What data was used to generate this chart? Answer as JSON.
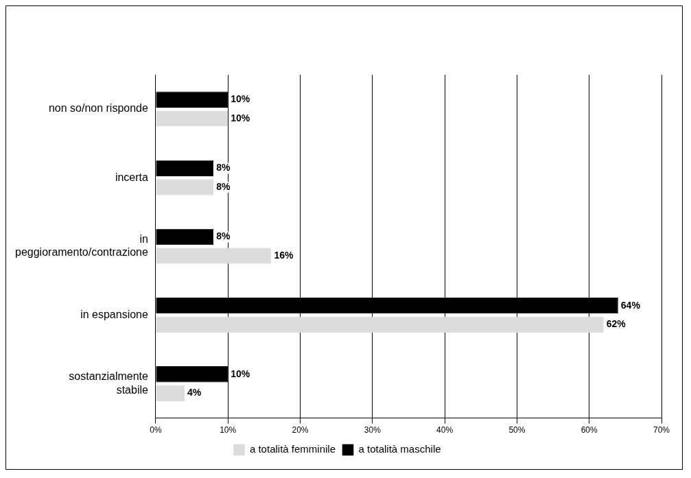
{
  "chart_data": {
    "type": "bar",
    "orientation": "horizontal",
    "categories": [
      "non so/non risponde",
      "incerta",
      "in peggioramento/contrazione",
      "in espansione",
      "sostanzialmente stabile"
    ],
    "series": [
      {
        "name": "a totalità maschile",
        "color": "#000000",
        "values": [
          10,
          8,
          8,
          64,
          10
        ],
        "value_labels": [
          "10%",
          "8%",
          "8%",
          "64%",
          "10%"
        ]
      },
      {
        "name": "a totalità femminile",
        "color": "#dcdcdc",
        "values": [
          10,
          8,
          16,
          62,
          4
        ],
        "value_labels": [
          "10%",
          "8%",
          "16%",
          "62%",
          "4%"
        ]
      }
    ],
    "xlim": [
      0,
      70
    ],
    "xticks": [
      {
        "value": 0,
        "label": "0%"
      },
      {
        "value": 10,
        "label": "10%"
      },
      {
        "value": 20,
        "label": "20%"
      },
      {
        "value": 30,
        "label": "30%"
      },
      {
        "value": 40,
        "label": "40%"
      },
      {
        "value": 50,
        "label": "50%"
      },
      {
        "value": 60,
        "label": "60%"
      },
      {
        "value": 70,
        "label": "70%"
      }
    ],
    "grid": "x",
    "legend": "bottom"
  }
}
